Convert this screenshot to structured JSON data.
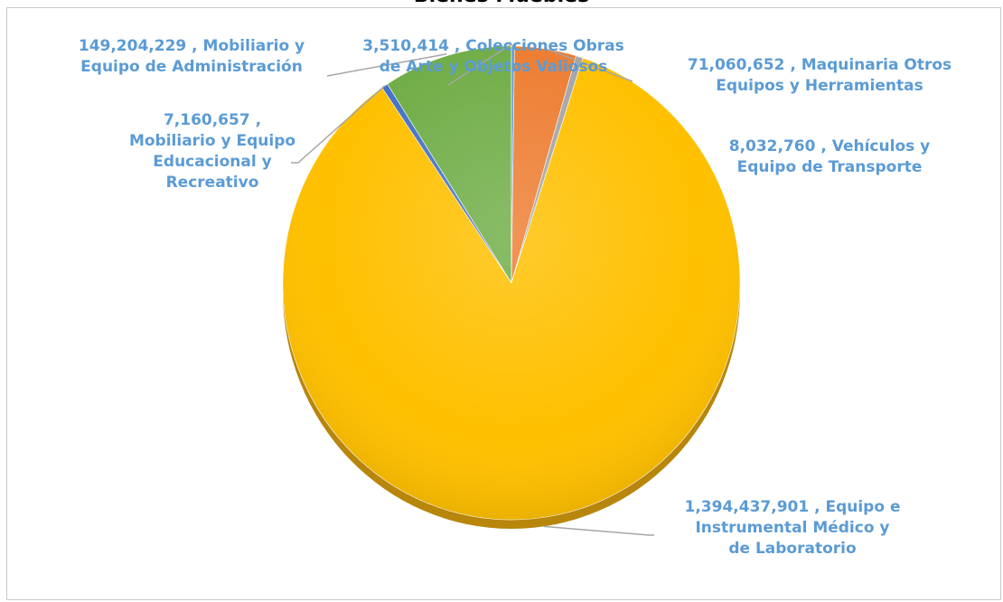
{
  "colors": {
    "label_text": "#5b9bd5",
    "leader_line": "#a6a6a6"
  },
  "chart_data": {
    "type": "pie",
    "title": "Bienes Muebles",
    "slices": [
      {
        "name": "Mobiliario y Equipo de Administración",
        "value": 149204229,
        "label": "149,204,229 , Mobiliario y\nEquipo de Administración",
        "color": "#70ad47"
      },
      {
        "name": "Colecciones Obras de Arte y Objetos Valiosos",
        "value": 3510414,
        "label": "3,510,414 , Colecciones Obras\nde Arte y Objetos Valiosos",
        "color": "#5b9bd5"
      },
      {
        "name": "Maquinaria Otros Equipos y Herramientas",
        "value": 71060652,
        "label": "71,060,652 , Maquinaria Otros\nEquipos y Herramientas",
        "color": "#ed7d31"
      },
      {
        "name": "Vehículos y Equipo de Transporte",
        "value": 8032760,
        "label": "8,032,760 , Vehículos y\nEquipo de Transporte",
        "color": "#a5a5a5"
      },
      {
        "name": "Equipo e Instrumental Médico y de Laboratorio",
        "value": 1394437901,
        "label": "1,394,437,901 , Equipo e\nInstrumental Médico y\nde Laboratorio",
        "color": "#ffc000"
      },
      {
        "name": "Mobiliario y Equipo Educacional y Recreativo",
        "value": 7160657,
        "label": "7,160,657 ,\nMobiliario y Equipo\nEducacional y\nRecreativo",
        "color": "#4472c4"
      }
    ],
    "legend": "none",
    "data_labels": "outside with leader lines"
  }
}
